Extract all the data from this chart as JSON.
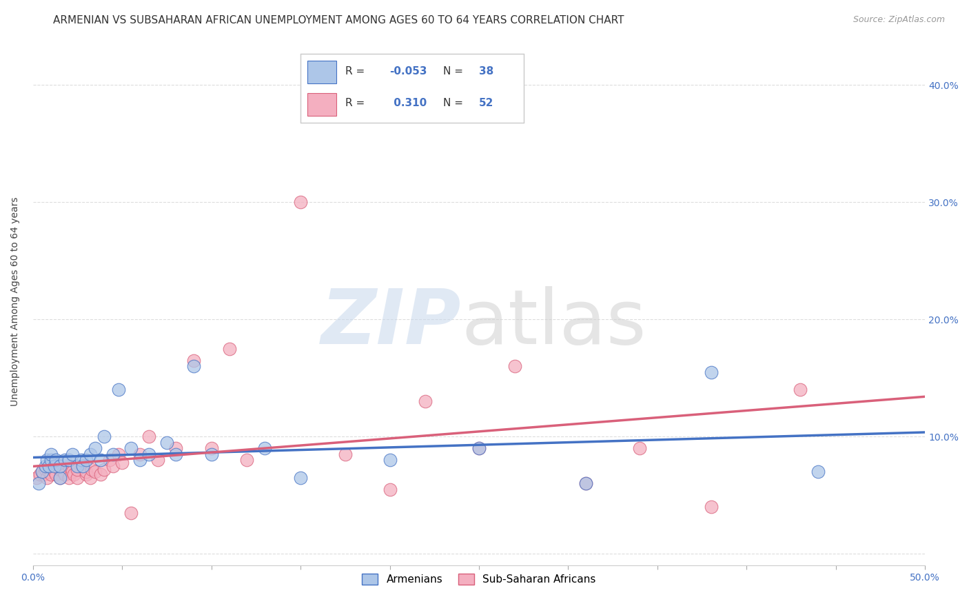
{
  "title": "ARMENIAN VS SUBSAHARAN AFRICAN UNEMPLOYMENT AMONG AGES 60 TO 64 YEARS CORRELATION CHART",
  "source": "Source: ZipAtlas.com",
  "ylabel": "Unemployment Among Ages 60 to 64 years",
  "xlim": [
    0.0,
    0.5
  ],
  "ylim": [
    -0.01,
    0.44
  ],
  "yticks": [
    0.0,
    0.1,
    0.2,
    0.3,
    0.4
  ],
  "ytick_labels": [
    "",
    "10.0%",
    "20.0%",
    "30.0%",
    "40.0%"
  ],
  "xticks": [
    0.0,
    0.05,
    0.1,
    0.15,
    0.2,
    0.25,
    0.3,
    0.35,
    0.4,
    0.45,
    0.5
  ],
  "armenian_R": "-0.053",
  "armenian_N": "38",
  "subsaharan_R": "0.310",
  "subsaharan_N": "52",
  "armenian_color": "#adc6e8",
  "armenian_line_color": "#4472c4",
  "subsaharan_color": "#f4afc0",
  "subsaharan_line_color": "#d9607a",
  "armenian_x": [
    0.003,
    0.005,
    0.007,
    0.008,
    0.009,
    0.01,
    0.01,
    0.012,
    0.013,
    0.015,
    0.015,
    0.018,
    0.02,
    0.022,
    0.025,
    0.027,
    0.028,
    0.03,
    0.032,
    0.035,
    0.038,
    0.04,
    0.045,
    0.048,
    0.055,
    0.06,
    0.065,
    0.075,
    0.08,
    0.09,
    0.1,
    0.13,
    0.15,
    0.2,
    0.25,
    0.31,
    0.38,
    0.44
  ],
  "armenian_y": [
    0.06,
    0.07,
    0.075,
    0.08,
    0.075,
    0.08,
    0.085,
    0.075,
    0.08,
    0.065,
    0.075,
    0.08,
    0.08,
    0.085,
    0.075,
    0.08,
    0.075,
    0.08,
    0.085,
    0.09,
    0.08,
    0.1,
    0.085,
    0.14,
    0.09,
    0.08,
    0.085,
    0.095,
    0.085,
    0.16,
    0.085,
    0.09,
    0.065,
    0.08,
    0.09,
    0.06,
    0.155,
    0.07
  ],
  "subsaharan_x": [
    0.002,
    0.004,
    0.005,
    0.006,
    0.007,
    0.008,
    0.009,
    0.01,
    0.01,
    0.012,
    0.013,
    0.015,
    0.015,
    0.017,
    0.018,
    0.02,
    0.02,
    0.022,
    0.023,
    0.025,
    0.025,
    0.028,
    0.03,
    0.03,
    0.032,
    0.033,
    0.035,
    0.038,
    0.04,
    0.043,
    0.045,
    0.048,
    0.05,
    0.055,
    0.06,
    0.065,
    0.07,
    0.08,
    0.09,
    0.1,
    0.11,
    0.12,
    0.15,
    0.175,
    0.2,
    0.22,
    0.25,
    0.27,
    0.31,
    0.34,
    0.38,
    0.43
  ],
  "subsaharan_y": [
    0.065,
    0.068,
    0.07,
    0.068,
    0.072,
    0.065,
    0.07,
    0.068,
    0.075,
    0.07,
    0.068,
    0.065,
    0.072,
    0.07,
    0.068,
    0.065,
    0.075,
    0.07,
    0.068,
    0.065,
    0.072,
    0.075,
    0.068,
    0.07,
    0.065,
    0.072,
    0.07,
    0.068,
    0.072,
    0.08,
    0.075,
    0.085,
    0.078,
    0.035,
    0.085,
    0.1,
    0.08,
    0.09,
    0.165,
    0.09,
    0.175,
    0.08,
    0.3,
    0.085,
    0.055,
    0.13,
    0.09,
    0.16,
    0.06,
    0.09,
    0.04,
    0.14
  ],
  "background_color": "#ffffff",
  "grid_color": "#dddddd",
  "title_fontsize": 11,
  "axis_label_fontsize": 10,
  "tick_fontsize": 10,
  "legend_fontsize": 11
}
